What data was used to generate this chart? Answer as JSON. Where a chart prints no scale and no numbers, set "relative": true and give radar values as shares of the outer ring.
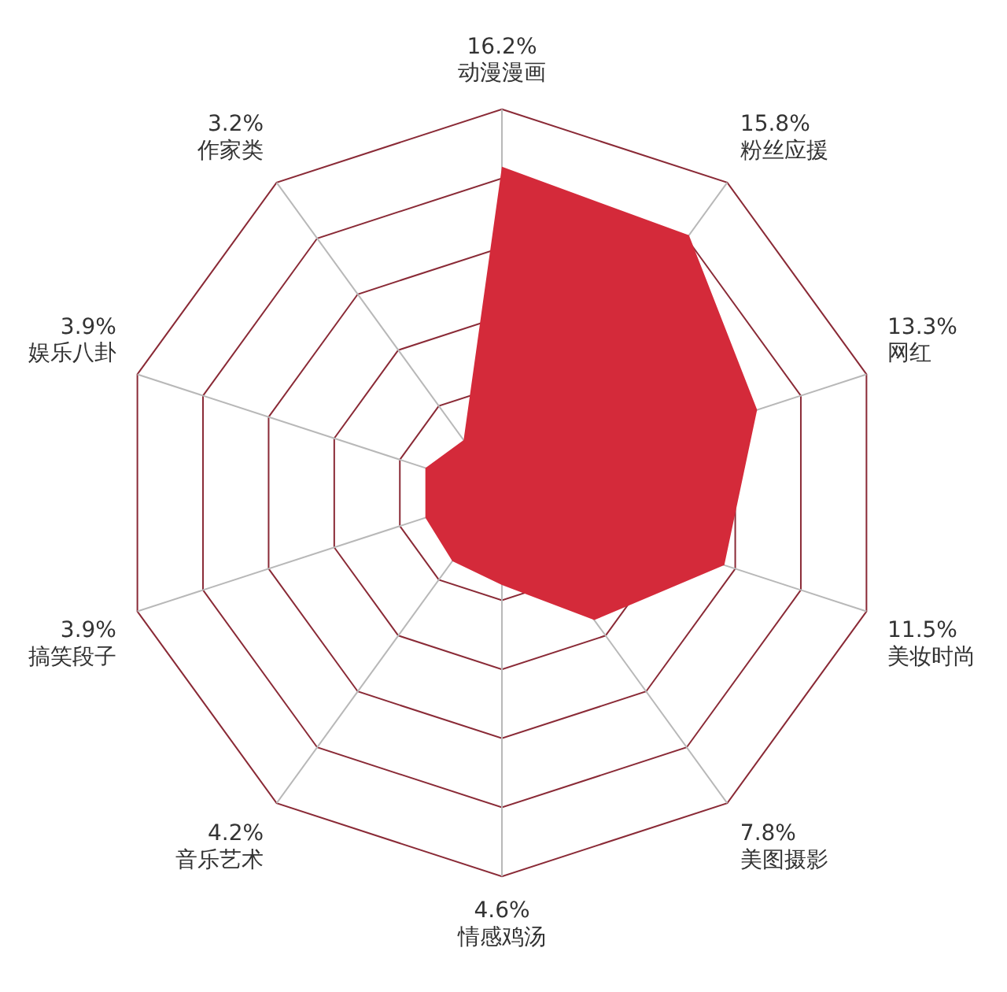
{
  "chart_data": {
    "type": "radar",
    "relative": true,
    "categories": [
      "16.2%\n动漫漫画",
      "15.8%\n粉丝应援",
      "13.3%\n网红",
      "11.5%\n美妆时尚",
      "7.8%\n美图摄影",
      "4.6%\n情感鸡汤",
      "4.2%\n音乐艺术",
      "3.9%\n搞笑段子",
      "3.9%\n娱乐八卦",
      "3.2%\n作家类"
    ],
    "series": [
      {
        "color": "#d42a3a",
        "values": [
          0.85,
          0.83,
          0.7,
          0.61,
          0.41,
          0.24,
          0.22,
          0.21,
          0.21,
          0.17
        ]
      }
    ],
    "grid": true,
    "legend": false
  }
}
